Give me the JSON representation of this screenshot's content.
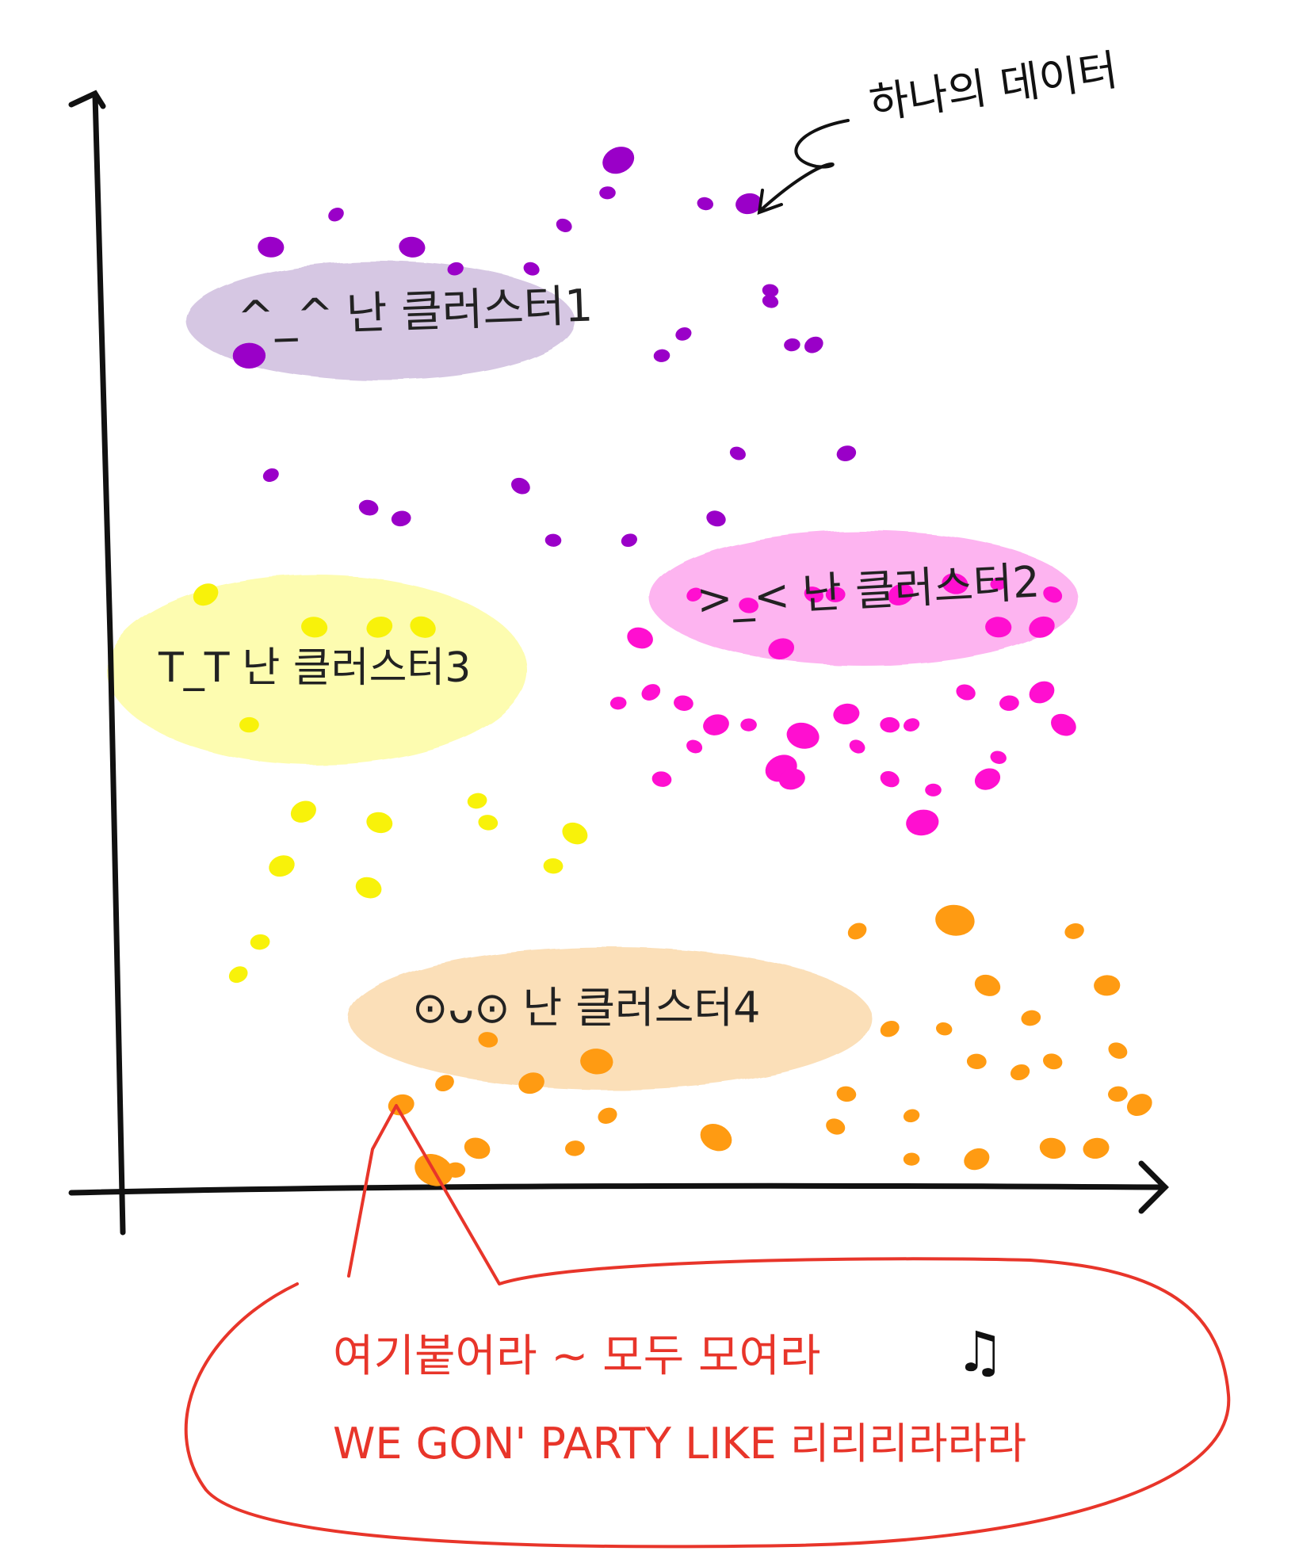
{
  "chart_data": {
    "type": "scatter",
    "title": "",
    "xlabel": "",
    "ylabel": "",
    "xlim": [
      0,
      100
    ],
    "ylim": [
      0,
      100
    ],
    "grid": false,
    "legend": "none",
    "point_annotation": "하나의 데이터",
    "clusters": [
      {
        "label": "난 클러스터1",
        "face": "^_^",
        "color": "#9a00c8",
        "bubble_color": "#d6c7e3",
        "points": [
          [
            20,
            89
          ],
          [
            27,
            86
          ],
          [
            31,
            84
          ],
          [
            38,
            84
          ],
          [
            45,
            91
          ],
          [
            46,
            94
          ],
          [
            54,
            90
          ],
          [
            58,
            90
          ],
          [
            41,
            88
          ],
          [
            14,
            86
          ],
          [
            52,
            78
          ],
          [
            60,
            81
          ],
          [
            62,
            77
          ],
          [
            64,
            77
          ],
          [
            60,
            82
          ],
          [
            67,
            67
          ],
          [
            57,
            67
          ],
          [
            12,
            76
          ],
          [
            14,
            65
          ],
          [
            23,
            62
          ],
          [
            26,
            61
          ],
          [
            37,
            64
          ],
          [
            40,
            59
          ],
          [
            47,
            59
          ],
          [
            55,
            61
          ],
          [
            50,
            76
          ]
        ],
        "sizes": [
          1,
          1.6,
          1,
          1,
          1,
          2,
          1,
          1.6,
          1,
          1.6,
          1,
          1,
          1,
          1.2,
          1,
          1.2,
          1,
          2,
          1,
          1.2,
          1.2,
          1.2,
          1,
          1,
          1.2,
          1
        ]
      },
      {
        "label": "난 클러스터2",
        "face": ">_<",
        "color": "#ff0fd0",
        "bubble_color": "#fdb4f0",
        "points": [
          [
            53,
            54
          ],
          [
            58,
            53
          ],
          [
            61,
            49
          ],
          [
            64,
            54
          ],
          [
            66,
            54
          ],
          [
            72,
            54
          ],
          [
            77,
            55
          ],
          [
            81,
            55
          ],
          [
            86,
            54
          ],
          [
            81,
            51
          ],
          [
            85,
            51
          ],
          [
            48,
            50
          ],
          [
            46,
            44
          ],
          [
            49,
            45
          ],
          [
            52,
            44
          ],
          [
            55,
            42
          ],
          [
            53,
            40
          ],
          [
            58,
            42
          ],
          [
            61,
            38
          ],
          [
            63,
            41
          ],
          [
            67,
            43
          ],
          [
            68,
            40
          ],
          [
            71,
            42
          ],
          [
            73,
            42
          ],
          [
            78,
            45
          ],
          [
            82,
            44
          ],
          [
            85,
            45
          ],
          [
            50,
            37
          ],
          [
            62,
            37
          ],
          [
            71,
            37
          ],
          [
            75,
            36
          ],
          [
            80,
            37
          ],
          [
            81,
            39
          ],
          [
            74,
            33
          ],
          [
            87,
            42
          ]
        ],
        "sizes": [
          1,
          1.2,
          1.6,
          1.2,
          1.2,
          1.6,
          1.6,
          1,
          1.2,
          1.6,
          1.6,
          1.6,
          1,
          1.2,
          1.2,
          1.6,
          1,
          1,
          2,
          2,
          1.6,
          1,
          1.2,
          1,
          1.2,
          1.2,
          1.6,
          1.2,
          1.6,
          1.2,
          1,
          1.6,
          1,
          2,
          1.6
        ]
      },
      {
        "label": "난 클러스터3",
        "face": "T_T",
        "color": "#f8f20a",
        "bubble_color": "#fdfcb0",
        "points": [
          [
            8,
            54
          ],
          [
            18,
            51
          ],
          [
            24,
            51
          ],
          [
            28,
            51
          ],
          [
            12,
            42
          ],
          [
            17,
            34
          ],
          [
            24,
            33
          ],
          [
            33,
            35
          ],
          [
            42,
            32
          ],
          [
            40,
            29
          ],
          [
            15,
            29
          ],
          [
            23,
            27
          ],
          [
            13,
            22
          ],
          [
            11,
            19
          ],
          [
            34,
            33
          ]
        ],
        "sizes": [
          1.6,
          1.6,
          1.6,
          1.6,
          1.2,
          1.6,
          1.6,
          1.2,
          1.6,
          1.2,
          1.6,
          1.6,
          1.2,
          1.2,
          1.2
        ]
      },
      {
        "label": "난 클러스터4",
        "face": "눈 뜬 얼굴",
        "color": "#ff9b12",
        "bubble_color": "#fbdfb8",
        "points": [
          [
            68,
            23
          ],
          [
            77,
            24
          ],
          [
            88,
            23
          ],
          [
            80,
            18
          ],
          [
            91,
            18
          ],
          [
            71,
            14
          ],
          [
            76,
            14
          ],
          [
            84,
            15
          ],
          [
            92,
            12
          ],
          [
            79,
            11
          ],
          [
            83,
            10
          ],
          [
            86,
            11
          ],
          [
            92,
            8
          ],
          [
            94,
            7
          ],
          [
            67,
            8
          ],
          [
            73,
            6
          ],
          [
            66,
            5
          ],
          [
            73,
            2
          ],
          [
            79,
            2
          ],
          [
            86,
            3
          ],
          [
            90,
            3
          ],
          [
            55,
            4
          ],
          [
            44,
            11
          ],
          [
            38,
            9
          ],
          [
            33,
            3
          ],
          [
            42,
            3
          ],
          [
            30,
            9
          ],
          [
            34,
            13
          ],
          [
            26,
            7
          ],
          [
            29,
            1
          ],
          [
            31,
            1
          ],
          [
            45,
            6
          ]
        ],
        "sizes": [
          1.2,
          2.4,
          1.2,
          1.6,
          1.6,
          1.2,
          1,
          1.2,
          1.2,
          1.2,
          1.2,
          1.2,
          1.2,
          1.6,
          1.2,
          1,
          1.2,
          1,
          1.6,
          1.6,
          1.6,
          2,
          2,
          1.6,
          1.6,
          1.2,
          1.2,
          1.2,
          1.6,
          2.4,
          1.2,
          1.2
        ]
      }
    ]
  },
  "callout": {
    "line1": "여기붙어라 ~  모두 모여라",
    "line2": "WE GON' PARTY LIKE 리리리라라라",
    "music_icon": "music-note-icon",
    "color": "#e8352a"
  }
}
